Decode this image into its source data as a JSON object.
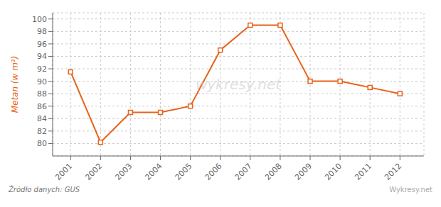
{
  "chart_data": {
    "type": "line",
    "x": [
      2001,
      2002,
      2003,
      2004,
      2005,
      2006,
      2007,
      2008,
      2009,
      2010,
      2011,
      2012
    ],
    "values": [
      91.5,
      80.2,
      85.0,
      85.0,
      86.0,
      95.0,
      99.0,
      99.0,
      90.0,
      90.0,
      89.0,
      88.0
    ],
    "color": "#e8621a",
    "marker": "square",
    "ylabel": "Metan (w m³)",
    "xlim": [
      2000.4,
      2012.8
    ],
    "xticks": [
      2001,
      2002,
      2003,
      2004,
      2005,
      2006,
      2007,
      2008,
      2009,
      2010,
      2011,
      2012
    ],
    "ylim": [
      78,
      101
    ],
    "yticks": [
      80,
      82,
      84,
      86,
      88,
      90,
      92,
      94,
      96,
      98,
      100
    ],
    "grid": true,
    "annotations": [
      "wykresy.net",
      "Źródło danych:  GUS",
      "Wykresy.net"
    ]
  }
}
